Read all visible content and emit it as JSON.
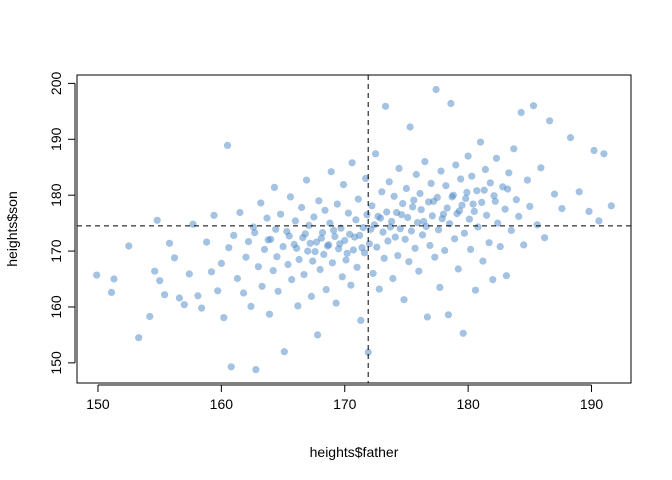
{
  "chart_data": {
    "type": "scatter",
    "title": "",
    "xlabel": "heights$father",
    "ylabel": "heights$son",
    "xlim": [
      148.3,
      193.2
    ],
    "ylim": [
      146.4,
      201.5
    ],
    "x_ticks": [
      150,
      160,
      170,
      180,
      190
    ],
    "y_ticks": [
      150,
      160,
      170,
      180,
      190,
      200
    ],
    "x_tick_labels": [
      "150",
      "160",
      "170",
      "180",
      "190"
    ],
    "y_tick_labels": [
      "150",
      "160",
      "170",
      "180",
      "190",
      "200"
    ],
    "grid": false,
    "point_color": "#4a86c5",
    "point_opacity": 0.5,
    "reference_lines": {
      "vertical_x": 171.9,
      "horizontal_y": 174.5,
      "style": "dashed"
    },
    "series": [
      {
        "points": [
          [
            149.9,
            165.7
          ],
          [
            151.1,
            162.6
          ],
          [
            151.3,
            165.0
          ],
          [
            152.5,
            170.9
          ],
          [
            153.3,
            154.5
          ],
          [
            154.2,
            158.3
          ],
          [
            154.6,
            166.4
          ],
          [
            154.8,
            175.5
          ],
          [
            155.0,
            164.7
          ],
          [
            155.4,
            162.2
          ],
          [
            155.8,
            171.4
          ],
          [
            156.2,
            168.8
          ],
          [
            156.6,
            161.6
          ],
          [
            157.0,
            160.4
          ],
          [
            157.4,
            165.9
          ],
          [
            157.7,
            174.8
          ],
          [
            158.1,
            162.0
          ],
          [
            158.4,
            159.8
          ],
          [
            158.8,
            171.6
          ],
          [
            159.2,
            166.3
          ],
          [
            159.4,
            176.4
          ],
          [
            159.7,
            162.9
          ],
          [
            160.0,
            167.8
          ],
          [
            160.2,
            158.1
          ],
          [
            160.5,
            188.9
          ],
          [
            160.6,
            170.6
          ],
          [
            160.8,
            149.3
          ],
          [
            161.0,
            172.8
          ],
          [
            161.3,
            165.1
          ],
          [
            161.5,
            176.9
          ],
          [
            161.8,
            162.5
          ],
          [
            162.0,
            168.9
          ],
          [
            162.2,
            171.7
          ],
          [
            162.4,
            160.1
          ],
          [
            162.6,
            174.3
          ],
          [
            162.8,
            148.8
          ],
          [
            163.0,
            167.2
          ],
          [
            163.2,
            178.6
          ],
          [
            163.3,
            163.7
          ],
          [
            163.5,
            170.3
          ],
          [
            163.7,
            175.9
          ],
          [
            163.9,
            158.7
          ],
          [
            164.0,
            172.1
          ],
          [
            164.2,
            166.5
          ],
          [
            164.3,
            181.4
          ],
          [
            164.5,
            169.0
          ],
          [
            164.6,
            162.8
          ],
          [
            164.8,
            176.6
          ],
          [
            165.0,
            170.8
          ],
          [
            165.1,
            152.0
          ],
          [
            165.3,
            173.5
          ],
          [
            165.4,
            167.6
          ],
          [
            165.6,
            179.7
          ],
          [
            165.7,
            164.9
          ],
          [
            165.9,
            171.2
          ],
          [
            166.0,
            175.4
          ],
          [
            166.2,
            160.2
          ],
          [
            166.3,
            168.5
          ],
          [
            166.5,
            177.8
          ],
          [
            166.6,
            172.4
          ],
          [
            166.7,
            165.8
          ],
          [
            166.9,
            182.7
          ],
          [
            167.0,
            170.0
          ],
          [
            167.1,
            174.6
          ],
          [
            167.3,
            161.9
          ],
          [
            167.4,
            168.2
          ],
          [
            167.5,
            176.1
          ],
          [
            167.7,
            171.6
          ],
          [
            167.8,
            155.0
          ],
          [
            167.9,
            179.0
          ],
          [
            168.0,
            166.7
          ],
          [
            168.2,
            173.3
          ],
          [
            168.3,
            169.4
          ],
          [
            168.4,
            177.3
          ],
          [
            168.5,
            163.1
          ],
          [
            168.7,
            171.1
          ],
          [
            168.8,
            175.0
          ],
          [
            168.9,
            184.2
          ],
          [
            169.0,
            167.9
          ],
          [
            169.2,
            172.6
          ],
          [
            169.3,
            160.7
          ],
          [
            169.4,
            178.4
          ],
          [
            169.5,
            170.4
          ],
          [
            169.7,
            174.1
          ],
          [
            169.8,
            165.4
          ],
          [
            169.9,
            181.9
          ],
          [
            170.0,
            171.9
          ],
          [
            170.1,
            168.4
          ],
          [
            170.3,
            176.8
          ],
          [
            170.4,
            173.0
          ],
          [
            170.5,
            163.9
          ],
          [
            170.6,
            185.8
          ],
          [
            170.7,
            170.2
          ],
          [
            170.9,
            175.6
          ],
          [
            171.0,
            167.1
          ],
          [
            171.1,
            179.3
          ],
          [
            171.2,
            172.8
          ],
          [
            171.3,
            157.6
          ],
          [
            171.5,
            174.2
          ],
          [
            171.6,
            169.7
          ],
          [
            171.7,
            183.0
          ],
          [
            171.8,
            176.5
          ],
          [
            171.9,
            151.9
          ],
          [
            172.0,
            171.3
          ],
          [
            172.2,
            178.1
          ],
          [
            172.3,
            166.0
          ],
          [
            172.4,
            174.7
          ],
          [
            172.5,
            187.4
          ],
          [
            172.6,
            170.7
          ],
          [
            172.7,
            176.2
          ],
          [
            172.8,
            163.2
          ],
          [
            173.0,
            180.6
          ],
          [
            173.1,
            173.4
          ],
          [
            173.2,
            168.7
          ],
          [
            173.3,
            195.9
          ],
          [
            173.4,
            177.0
          ],
          [
            173.5,
            171.8
          ],
          [
            173.6,
            182.4
          ],
          [
            173.8,
            175.3
          ],
          [
            173.9,
            165.1
          ],
          [
            174.0,
            179.8
          ],
          [
            174.1,
            172.5
          ],
          [
            174.2,
            176.9
          ],
          [
            174.3,
            169.2
          ],
          [
            174.4,
            184.8
          ],
          [
            174.5,
            174.0
          ],
          [
            174.7,
            178.5
          ],
          [
            174.8,
            161.3
          ],
          [
            174.9,
            172.1
          ],
          [
            175.0,
            181.2
          ],
          [
            175.1,
            176.0
          ],
          [
            175.2,
            168.1
          ],
          [
            175.3,
            192.2
          ],
          [
            175.4,
            173.6
          ],
          [
            175.6,
            179.1
          ],
          [
            175.7,
            170.5
          ],
          [
            175.8,
            183.7
          ],
          [
            175.9,
            175.1
          ],
          [
            176.0,
            166.4
          ],
          [
            176.1,
            180.3
          ],
          [
            176.2,
            177.4
          ],
          [
            176.3,
            172.9
          ],
          [
            176.5,
            186.0
          ],
          [
            176.6,
            174.4
          ],
          [
            176.7,
            158.2
          ],
          [
            176.8,
            178.8
          ],
          [
            176.9,
            171.0
          ],
          [
            177.0,
            182.1
          ],
          [
            177.1,
            176.3
          ],
          [
            177.3,
            168.9
          ],
          [
            177.4,
            198.9
          ],
          [
            177.5,
            179.6
          ],
          [
            177.6,
            173.8
          ],
          [
            177.7,
            163.5
          ],
          [
            177.8,
            184.3
          ],
          [
            177.9,
            175.8
          ],
          [
            178.1,
            170.1
          ],
          [
            178.2,
            181.7
          ],
          [
            178.3,
            177.7
          ],
          [
            178.4,
            158.6
          ],
          [
            178.5,
            174.9
          ],
          [
            178.6,
            196.4
          ],
          [
            178.8,
            180.0
          ],
          [
            178.9,
            172.2
          ],
          [
            179.0,
            185.4
          ],
          [
            179.1,
            176.7
          ],
          [
            179.2,
            166.8
          ],
          [
            179.4,
            182.9
          ],
          [
            179.5,
            178.2
          ],
          [
            179.6,
            155.3
          ],
          [
            179.7,
            173.2
          ],
          [
            179.8,
            179.4
          ],
          [
            180.0,
            187.0
          ],
          [
            180.1,
            175.7
          ],
          [
            180.2,
            170.3
          ],
          [
            180.3,
            183.4
          ],
          [
            180.5,
            177.1
          ],
          [
            180.6,
            163.0
          ],
          [
            180.7,
            180.8
          ],
          [
            180.8,
            174.3
          ],
          [
            181.0,
            189.5
          ],
          [
            181.1,
            178.7
          ],
          [
            181.2,
            168.2
          ],
          [
            181.4,
            184.6
          ],
          [
            181.5,
            176.4
          ],
          [
            181.7,
            171.5
          ],
          [
            181.8,
            182.2
          ],
          [
            182.0,
            164.9
          ],
          [
            182.1,
            179.9
          ],
          [
            182.3,
            186.6
          ],
          [
            182.4,
            175.0
          ],
          [
            182.6,
            170.8
          ],
          [
            182.8,
            181.5
          ],
          [
            183.0,
            177.5
          ],
          [
            183.1,
            165.6
          ],
          [
            183.3,
            184.0
          ],
          [
            183.5,
            173.7
          ],
          [
            183.7,
            188.3
          ],
          [
            183.9,
            179.2
          ],
          [
            184.1,
            176.2
          ],
          [
            184.3,
            194.8
          ],
          [
            184.5,
            171.1
          ],
          [
            184.8,
            182.7
          ],
          [
            185.0,
            178.0
          ],
          [
            185.3,
            196.0
          ],
          [
            185.6,
            174.7
          ],
          [
            185.9,
            184.9
          ],
          [
            186.2,
            172.4
          ],
          [
            186.6,
            193.3
          ],
          [
            187.0,
            180.2
          ],
          [
            187.6,
            177.6
          ],
          [
            188.3,
            190.3
          ],
          [
            189.0,
            180.6
          ],
          [
            189.8,
            177.1
          ],
          [
            190.2,
            188.0
          ],
          [
            190.6,
            175.4
          ],
          [
            191.0,
            187.4
          ],
          [
            191.6,
            178.1
          ],
          [
            162.7,
            173.3
          ],
          [
            163.8,
            172.0
          ],
          [
            164.4,
            173.9
          ],
          [
            165.5,
            172.7
          ],
          [
            166.1,
            170.5
          ],
          [
            166.8,
            173.1
          ],
          [
            167.2,
            171.4
          ],
          [
            167.6,
            169.9
          ],
          [
            168.1,
            172.3
          ],
          [
            168.6,
            170.9
          ],
          [
            169.1,
            173.7
          ],
          [
            169.6,
            171.3
          ],
          [
            170.2,
            169.6
          ],
          [
            170.8,
            172.5
          ],
          [
            171.4,
            170.6
          ],
          [
            172.1,
            173.9
          ],
          [
            172.9,
            175.9
          ],
          [
            173.7,
            174.3
          ],
          [
            174.6,
            176.5
          ],
          [
            175.5,
            177.9
          ],
          [
            176.4,
            175.3
          ],
          [
            177.2,
            178.9
          ],
          [
            178.0,
            176.6
          ],
          [
            178.7,
            179.7
          ],
          [
            179.3,
            177.2
          ],
          [
            179.9,
            180.5
          ],
          [
            180.4,
            178.4
          ],
          [
            181.3,
            180.9
          ],
          [
            182.2,
            178.9
          ],
          [
            183.2,
            181.1
          ]
        ]
      }
    ]
  }
}
